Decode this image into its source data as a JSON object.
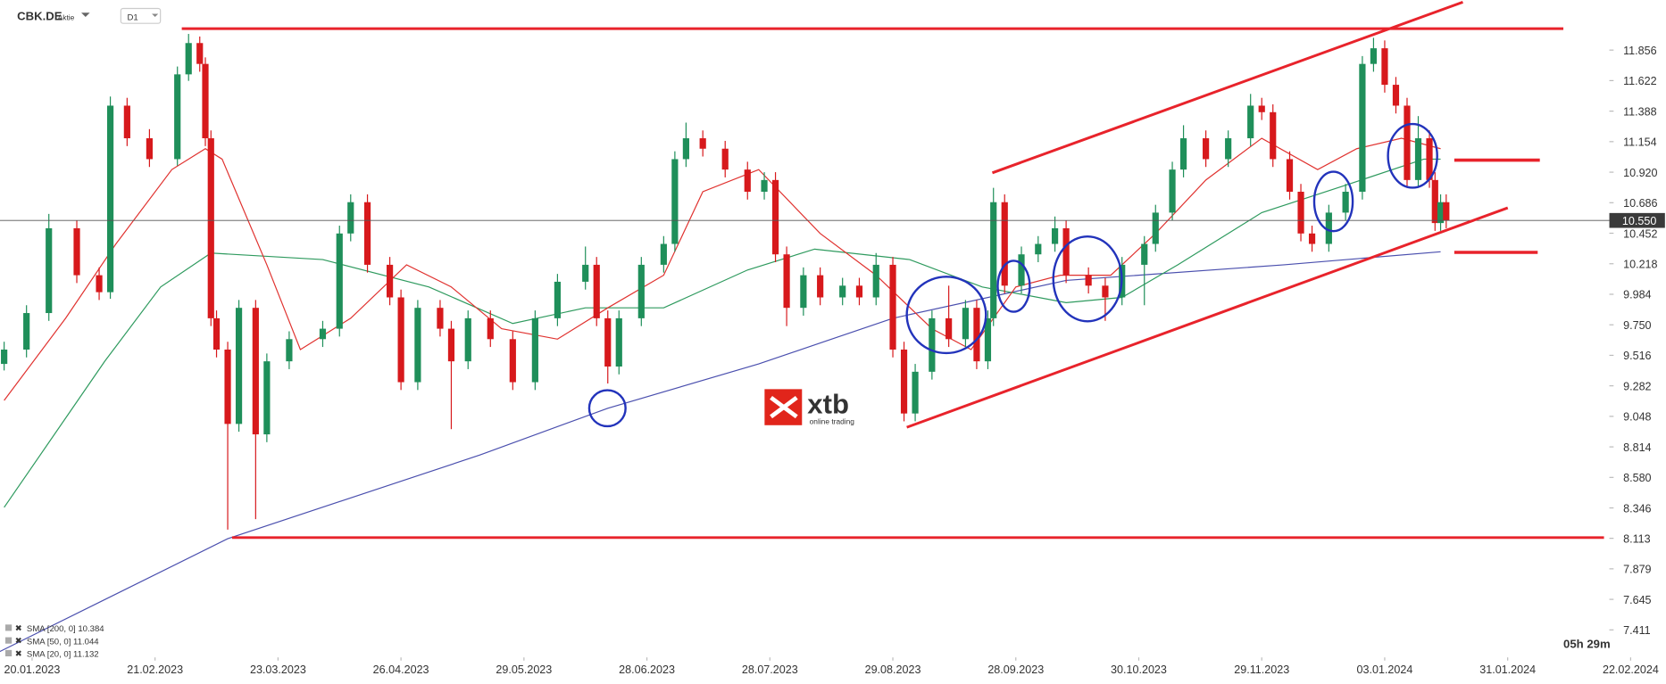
{
  "chart_data": {
    "type": "candlestick",
    "title": "CBK.DE",
    "subtitle": "Aktie",
    "timeframe": "D1",
    "up_color": "#1f8f5a",
    "down_color": "#d7191c",
    "x": [
      -5,
      -1,
      3,
      8,
      12,
      14,
      17,
      21,
      26,
      28,
      30,
      31,
      32,
      33,
      35,
      37,
      40,
      42,
      46,
      52,
      55,
      57,
      60,
      64,
      66,
      69,
      73,
      75,
      78,
      82,
      86,
      90,
      94,
      99,
      101,
      103,
      105,
      109,
      113,
      115,
      117,
      120,
      124,
      128,
      131,
      133,
      135,
      138,
      141,
      145,
      148,
      151,
      154,
      156,
      158,
      161,
      164,
      167,
      169,
      171,
      172,
      174,
      177,
      180,
      183,
      185,
      189,
      192,
      195,
      199,
      201,
      204,
      206,
      210,
      214,
      218,
      220,
      222,
      225,
      227,
      229,
      232,
      235,
      238,
      240,
      242,
      244,
      246,
      248,
      250,
      251,
      252,
      253
    ],
    "open": [
      9.45,
      9.56,
      9.84,
      10.49,
      10.13,
      10.0,
      11.43,
      11.18,
      11.02,
      11.67,
      11.91,
      11.75,
      11.18,
      9.8,
      9.56,
      8.99,
      9.88,
      8.91,
      9.47,
      9.64,
      9.72,
      10.45,
      10.69,
      10.21,
      9.96,
      9.31,
      9.88,
      9.72,
      9.47,
      9.8,
      9.64,
      9.31,
      9.8,
      10.08,
      10.21,
      9.8,
      9.43,
      9.8,
      10.21,
      10.37,
      11.02,
      11.18,
      11.1,
      10.94,
      10.77,
      10.86,
      10.29,
      9.88,
      10.13,
      9.96,
      10.05,
      9.96,
      10.21,
      9.56,
      9.07,
      9.39,
      9.8,
      9.64,
      9.88,
      9.47,
      9.8,
      10.69,
      10.05,
      10.29,
      10.37,
      10.49,
      10.13,
      10.05,
      9.96,
      10.21,
      10.37,
      10.61,
      10.94,
      11.18,
      11.02,
      11.18,
      11.43,
      11.38,
      11.02,
      10.77,
      10.45,
      10.37,
      10.61,
      10.77,
      11.75,
      11.87,
      11.59,
      11.43,
      10.86,
      11.18,
      10.86,
      10.53,
      10.69
    ],
    "high": [
      9.62,
      9.9,
      10.6,
      10.55,
      10.19,
      11.5,
      11.49,
      11.25,
      11.73,
      11.98,
      11.96,
      11.8,
      11.24,
      9.86,
      9.62,
      9.94,
      9.94,
      9.53,
      9.7,
      9.78,
      10.51,
      10.75,
      10.75,
      10.27,
      10.02,
      9.94,
      9.94,
      9.78,
      9.86,
      9.86,
      9.7,
      9.86,
      10.14,
      10.35,
      10.27,
      9.86,
      9.86,
      10.27,
      10.43,
      11.08,
      11.3,
      11.24,
      11.16,
      11.0,
      10.92,
      10.92,
      10.35,
      10.19,
      10.19,
      10.11,
      10.11,
      10.3,
      10.27,
      9.62,
      9.45,
      9.86,
      10.05,
      9.94,
      9.94,
      9.86,
      10.8,
      10.75,
      10.35,
      10.43,
      10.58,
      10.55,
      10.19,
      10.11,
      10.27,
      10.43,
      10.67,
      11.0,
      11.28,
      11.24,
      11.24,
      11.52,
      11.49,
      11.44,
      11.08,
      10.83,
      10.51,
      10.67,
      10.83,
      11.81,
      11.95,
      11.93,
      11.65,
      11.49,
      11.35,
      11.24,
      10.92,
      10.75,
      10.75
    ],
    "low": [
      9.4,
      9.5,
      9.78,
      10.07,
      9.94,
      9.95,
      11.12,
      10.96,
      10.97,
      11.62,
      11.69,
      11.12,
      9.74,
      9.5,
      8.18,
      8.93,
      8.26,
      8.85,
      9.41,
      9.58,
      9.66,
      10.39,
      10.15,
      9.9,
      9.25,
      9.25,
      9.66,
      8.95,
      9.41,
      9.58,
      9.25,
      9.25,
      9.74,
      10.02,
      9.74,
      9.3,
      9.37,
      9.74,
      10.15,
      10.31,
      10.96,
      11.04,
      10.88,
      10.71,
      10.71,
      10.23,
      9.74,
      9.82,
      9.9,
      9.9,
      9.9,
      9.9,
      9.5,
      9.01,
      9.01,
      9.33,
      9.58,
      9.58,
      9.41,
      9.41,
      9.74,
      9.99,
      9.99,
      10.23,
      10.31,
      10.07,
      9.99,
      9.78,
      9.9,
      9.9,
      10.31,
      10.55,
      10.88,
      10.96,
      10.96,
      11.12,
      11.32,
      10.96,
      10.71,
      10.39,
      10.31,
      10.31,
      10.55,
      10.71,
      11.69,
      11.53,
      11.37,
      10.8,
      10.8,
      10.8,
      10.47,
      10.47,
      10.49
    ],
    "close": [
      9.56,
      9.84,
      10.49,
      10.13,
      10.0,
      11.43,
      11.18,
      11.02,
      11.67,
      11.91,
      11.75,
      11.18,
      9.8,
      9.56,
      8.99,
      9.88,
      8.91,
      9.47,
      9.64,
      9.72,
      10.45,
      10.69,
      10.21,
      9.96,
      9.31,
      9.88,
      9.72,
      9.47,
      9.8,
      9.64,
      9.31,
      9.8,
      10.08,
      10.21,
      9.8,
      9.43,
      9.8,
      10.21,
      10.37,
      11.02,
      11.18,
      11.1,
      10.94,
      10.77,
      10.86,
      10.29,
      9.88,
      10.13,
      9.96,
      10.05,
      9.96,
      10.21,
      9.56,
      9.07,
      9.39,
      9.8,
      9.64,
      9.88,
      9.47,
      9.8,
      10.69,
      10.05,
      10.29,
      10.37,
      10.49,
      10.13,
      10.05,
      9.96,
      10.21,
      10.37,
      10.61,
      10.94,
      11.18,
      11.02,
      11.18,
      11.43,
      11.38,
      11.02,
      10.77,
      10.45,
      10.37,
      10.61,
      10.77,
      11.75,
      11.87,
      11.59,
      11.43,
      10.86,
      11.18,
      10.86,
      10.53,
      10.69,
      10.55
    ],
    "series": [
      {
        "name": "SMA [200, 0] 10.384",
        "color": "#4a4fae",
        "x": [
          -6,
          35,
          80,
          103,
          130,
          154,
          185,
          224,
          252
        ],
        "values": [
          7.24,
          8.11,
          8.75,
          9.11,
          9.45,
          9.8,
          10.09,
          10.21,
          10.31
        ]
      },
      {
        "name": "SMA [50, 0] 11.044",
        "color": "#2e9a5e",
        "x": [
          -5,
          13,
          23,
          32,
          52,
          71,
          86,
          99,
          113,
          128,
          140,
          157,
          170,
          185,
          195,
          205,
          220,
          235,
          249,
          252
        ],
        "values": [
          8.35,
          9.47,
          10.04,
          10.3,
          10.25,
          10.04,
          9.76,
          9.88,
          9.88,
          10.17,
          10.33,
          10.25,
          10.04,
          9.92,
          9.96,
          10.21,
          10.61,
          10.82,
          11.02,
          11.02
        ]
      },
      {
        "name": "SMA [20, 0] 11.132",
        "color": "#e0322f",
        "x": [
          -5,
          6,
          15,
          25,
          31,
          34,
          42,
          48,
          57,
          67,
          75,
          84,
          94,
          103,
          113,
          120,
          130,
          141,
          151,
          161,
          168,
          176,
          184,
          193,
          201,
          210,
          220,
          230,
          237,
          245,
          252
        ],
        "values": [
          9.17,
          9.8,
          10.37,
          10.94,
          11.1,
          11.02,
          10.21,
          9.56,
          9.8,
          10.21,
          10.04,
          9.72,
          9.64,
          9.88,
          10.13,
          10.77,
          10.94,
          10.45,
          10.13,
          9.72,
          9.56,
          10.04,
          10.13,
          10.13,
          10.45,
          10.86,
          11.18,
          10.94,
          11.1,
          11.18,
          11.1
        ]
      }
    ],
    "xlim": [
      -6,
      291
    ],
    "xticks": [
      {
        "value": 0,
        "label": "20.01.2023"
      },
      {
        "value": 22,
        "label": "21.02.2023"
      },
      {
        "value": 44,
        "label": "23.03.2023"
      },
      {
        "value": 66,
        "label": "26.04.2023"
      },
      {
        "value": 88,
        "label": "29.05.2023"
      },
      {
        "value": 110,
        "label": "28.06.2023"
      },
      {
        "value": 132,
        "label": "28.07.2023"
      },
      {
        "value": 154,
        "label": "29.08.2023"
      },
      {
        "value": 176,
        "label": "28.09.2023"
      },
      {
        "value": 198,
        "label": "30.10.2023"
      },
      {
        "value": 220,
        "label": "29.11.2023"
      },
      {
        "value": 242,
        "label": "03.01.2024"
      },
      {
        "value": 264,
        "label": "31.01.2024"
      },
      {
        "value": 286,
        "label": "22.02.2024"
      }
    ],
    "ylim": [
      7.2,
      12.24
    ],
    "yticks": [
      11.856,
      11.622,
      11.388,
      11.154,
      {
        "value": 10.92,
        "label": "10.920"
      },
      10.686,
      10.452,
      10.218,
      9.984,
      {
        "value": 9.75,
        "label": "9.750"
      },
      9.516,
      9.282,
      9.048,
      8.814,
      {
        "value": 8.58,
        "label": "8.580"
      },
      8.346,
      8.113,
      7.879,
      7.645,
      7.411
    ],
    "last_price": {
      "value": 10.55,
      "label": "10.550"
    },
    "timer": "05h 29m",
    "logo": {
      "text": "xtb",
      "tagline": "online trading"
    }
  }
}
